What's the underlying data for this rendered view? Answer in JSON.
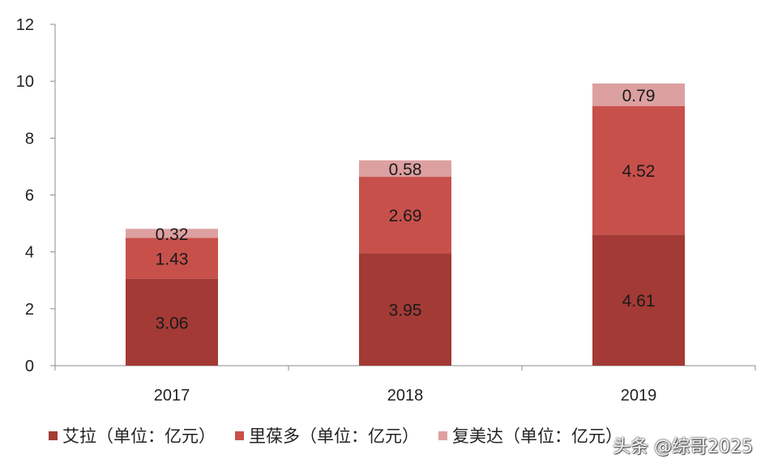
{
  "chart_data": {
    "type": "bar",
    "stacked": true,
    "categories": [
      "2017",
      "2018",
      "2019"
    ],
    "series": [
      {
        "name": "艾拉（单位：亿元）",
        "color": "#a33a35",
        "values": [
          3.06,
          3.95,
          4.61
        ],
        "labels": [
          "3.06",
          "3.95",
          "4.61"
        ]
      },
      {
        "name": "里葆多（单位：亿元）",
        "color": "#c8504b",
        "values": [
          1.43,
          2.69,
          4.52
        ],
        "labels": [
          "1.43",
          "2.69",
          "4.52"
        ]
      },
      {
        "name": "复美达（单位：亿元）",
        "color": "#dda0a0",
        "values": [
          0.32,
          0.58,
          0.79
        ],
        "labels": [
          "0.32",
          "0.58",
          "0.79"
        ]
      }
    ],
    "ylim": [
      0,
      12
    ],
    "yticks": [
      "0",
      "2",
      "4",
      "6",
      "8",
      "10",
      "12"
    ],
    "grid": false,
    "legend_position": "bottom"
  },
  "watermark": "头条 @综哥2025"
}
